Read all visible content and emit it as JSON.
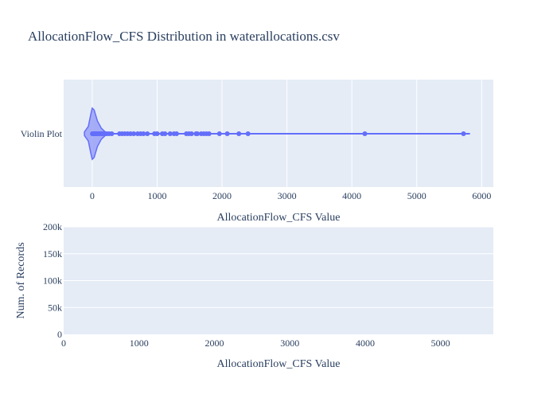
{
  "chart_data": [
    {
      "type": "violin",
      "title": "AllocationFlow_CFS Distribution in waterallocations.csv",
      "xlabel": "AllocationFlow_CFS Value",
      "ylabel": "",
      "category": "Violin Plot",
      "xlim": [
        -440,
        6180
      ],
      "xticks": [
        0,
        1000,
        2000,
        3000,
        4000,
        5000,
        6000
      ],
      "xtick_labels": [
        "0",
        "1000",
        "2000",
        "3000",
        "4000",
        "5000",
        "6000"
      ],
      "whisker_max": 5820,
      "points": [
        2,
        6,
        10,
        14,
        18,
        24,
        30,
        38,
        46,
        55,
        65,
        78,
        92,
        108,
        125,
        145,
        168,
        195,
        225,
        260,
        300,
        420,
        460,
        500,
        545,
        590,
        640,
        700,
        745,
        790,
        850,
        960,
        1000,
        1080,
        1120,
        1200,
        1260,
        1300,
        1450,
        1490,
        1530,
        1600,
        1620,
        1680,
        1720,
        1760,
        1800,
        1960,
        2080,
        2260,
        2400,
        4200,
        5720
      ],
      "color": "#636efa",
      "fill_color": "#9aa1f7"
    },
    {
      "type": "bar",
      "title": "",
      "xlabel": "AllocationFlow_CFS Value",
      "ylabel": "Num. of Records",
      "xlim": [
        0,
        5700
      ],
      "ylim": [
        0,
        200000
      ],
      "xticks": [
        0,
        1000,
        2000,
        3000,
        4000,
        5000
      ],
      "xtick_labels": [
        "0",
        "1000",
        "2000",
        "3000",
        "4000",
        "5000"
      ],
      "yticks": [
        0,
        50000,
        100000,
        150000,
        200000
      ],
      "ytick_labels": [
        "0",
        "50k",
        "100k",
        "150k",
        "200k"
      ],
      "values": []
    }
  ],
  "colors": {
    "plot_bg": "#e5ecf6",
    "grid": "#ffffff",
    "text": "#2a3f5f"
  }
}
